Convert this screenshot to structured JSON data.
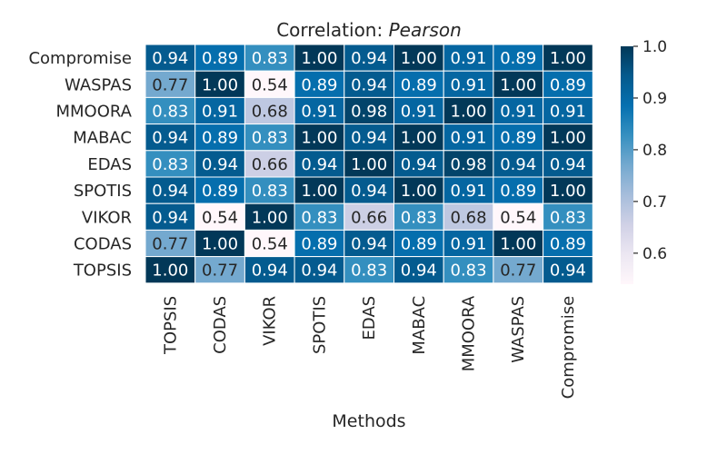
{
  "chart_data": {
    "type": "heatmap",
    "title_prefix": "Correlation: ",
    "title_method": "Pearson",
    "xlabel": "Methods",
    "ylabel": "",
    "x_categories": [
      "TOPSIS",
      "CODAS",
      "VIKOR",
      "SPOTIS",
      "EDAS",
      "MABAC",
      "MMOORA",
      "WASPAS",
      "Compromise"
    ],
    "y_categories": [
      "Compromise",
      "WASPAS",
      "MMOORA",
      "MABAC",
      "EDAS",
      "SPOTIS",
      "VIKOR",
      "CODAS",
      "TOPSIS"
    ],
    "values": [
      [
        0.94,
        0.89,
        0.83,
        1.0,
        0.94,
        1.0,
        0.91,
        0.89,
        1.0
      ],
      [
        0.77,
        1.0,
        0.54,
        0.89,
        0.94,
        0.89,
        0.91,
        1.0,
        0.89
      ],
      [
        0.83,
        0.91,
        0.68,
        0.91,
        0.98,
        0.91,
        1.0,
        0.91,
        0.91
      ],
      [
        0.94,
        0.89,
        0.83,
        1.0,
        0.94,
        1.0,
        0.91,
        0.89,
        1.0
      ],
      [
        0.83,
        0.94,
        0.66,
        0.94,
        1.0,
        0.94,
        0.98,
        0.94,
        0.94
      ],
      [
        0.94,
        0.89,
        0.83,
        1.0,
        0.94,
        1.0,
        0.91,
        0.89,
        1.0
      ],
      [
        0.94,
        0.54,
        1.0,
        0.83,
        0.66,
        0.83,
        0.68,
        0.54,
        0.83
      ],
      [
        0.77,
        1.0,
        0.54,
        0.89,
        0.94,
        0.89,
        0.91,
        1.0,
        0.89
      ],
      [
        1.0,
        0.77,
        0.94,
        0.94,
        0.83,
        0.94,
        0.83,
        0.77,
        0.94
      ]
    ],
    "value_format_decimals": 2,
    "colorbar": {
      "vmin": 0.54,
      "vmax": 1.0,
      "ticks": [
        0.6,
        0.7,
        0.8,
        0.9,
        1.0
      ],
      "tick_labels": [
        "0.6",
        "0.7",
        "0.8",
        "0.9",
        "1.0"
      ]
    },
    "colormap": {
      "name": "PuBu",
      "stops": [
        "#fff7fb",
        "#ece7f2",
        "#d0d1e6",
        "#a6bddb",
        "#74a9cf",
        "#3690c0",
        "#0570b0",
        "#045a8d",
        "#023858"
      ]
    },
    "grid_line_color": "#ffffff"
  }
}
